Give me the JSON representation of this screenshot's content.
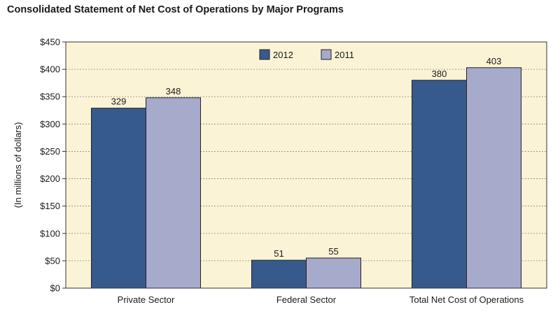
{
  "title": "Consolidated Statement of Net Cost of Operations by Major Programs",
  "colors": {
    "plot_bg": "#fbf3d5",
    "series_2012": "#375a8c",
    "series_2011": "#a6aacb",
    "grid": "#888888"
  },
  "chart_data": {
    "type": "bar",
    "title": "Consolidated Statement of Net Cost of Operations by Major Programs",
    "xlabel": "",
    "ylabel": "(In millions of dollars)",
    "categories": [
      "Private Sector",
      "Federal Sector",
      "Total Net Cost of Operations"
    ],
    "series": [
      {
        "name": "2012",
        "values": [
          329,
          51,
          380
        ]
      },
      {
        "name": "2011",
        "values": [
          348,
          55,
          403
        ]
      }
    ],
    "ylim": [
      0,
      450
    ],
    "yticks": [
      0,
      50,
      100,
      150,
      200,
      250,
      300,
      350,
      400,
      450
    ],
    "ytick_labels": [
      "$0",
      "$50",
      "$100",
      "$150",
      "$200",
      "$250",
      "$300",
      "$350",
      "$400",
      "$450"
    ],
    "grid": true,
    "legend_position": "top-center"
  }
}
